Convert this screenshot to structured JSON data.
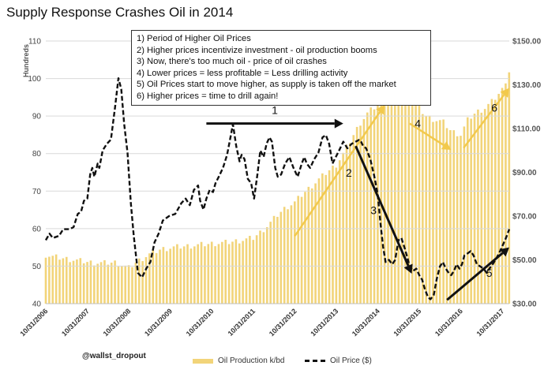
{
  "chart_data": {
    "type": "bar",
    "title": "Supply Response Crashes Oil in 2014",
    "ylabel": "Hundreds",
    "ylim": [
      40,
      110
    ],
    "y2lim": [
      30,
      150
    ],
    "y_ticks": [
      "40",
      "50",
      "60",
      "70",
      "80",
      "90",
      "100",
      "110"
    ],
    "y2_ticks": [
      "$30.00",
      "$50.00",
      "$70.00",
      "$90.00",
      "$110.00",
      "$130.00",
      "$150.00"
    ],
    "x_ticks": [
      "10/31/2006",
      "10/31/2007",
      "10/31/2008",
      "10/31/2009",
      "10/31/2010",
      "10/31/2011",
      "10/31/2012",
      "10/31/2013",
      "10/31/2014",
      "10/31/2015",
      "10/31/2016",
      "10/31/2017"
    ],
    "x_range": [
      2006.83,
      2018.0
    ],
    "legend": [
      "Oil Production k/bd",
      "Oil Price ($)"
    ],
    "series": [
      {
        "name": "Oil Production k/bd",
        "axis": "left",
        "points": [
          [
            2006.83,
            53
          ],
          [
            2007.0,
            52.5
          ],
          [
            2007.3,
            52
          ],
          [
            2007.6,
            51.5
          ],
          [
            2007.9,
            51
          ],
          [
            2008.2,
            50.8
          ],
          [
            2008.5,
            51
          ],
          [
            2008.83,
            49.5
          ],
          [
            2009.0,
            51
          ],
          [
            2009.3,
            53
          ],
          [
            2009.6,
            54.5
          ],
          [
            2009.9,
            55
          ],
          [
            2010.2,
            55.3
          ],
          [
            2010.5,
            55.6
          ],
          [
            2010.83,
            56
          ],
          [
            2011.2,
            56.3
          ],
          [
            2011.5,
            56.8
          ],
          [
            2011.83,
            57.5
          ],
          [
            2012.0,
            59
          ],
          [
            2012.2,
            61
          ],
          [
            2012.4,
            63.5
          ],
          [
            2012.6,
            65.5
          ],
          [
            2012.83,
            67
          ],
          [
            2013.0,
            69
          ],
          [
            2013.2,
            71
          ],
          [
            2013.4,
            73
          ],
          [
            2013.6,
            75
          ],
          [
            2013.83,
            77
          ],
          [
            2014.0,
            80
          ],
          [
            2014.2,
            84
          ],
          [
            2014.4,
            88
          ],
          [
            2014.6,
            91
          ],
          [
            2014.83,
            93
          ],
          [
            2015.0,
            95
          ],
          [
            2015.2,
            96
          ],
          [
            2015.4,
            95
          ],
          [
            2015.6,
            94
          ],
          [
            2015.83,
            92
          ],
          [
            2016.0,
            90
          ],
          [
            2016.2,
            89
          ],
          [
            2016.4,
            88.5
          ],
          [
            2016.6,
            86
          ],
          [
            2016.83,
            85
          ],
          [
            2017.0,
            89
          ],
          [
            2017.2,
            91
          ],
          [
            2017.4,
            92
          ],
          [
            2017.6,
            94
          ],
          [
            2017.83,
            97
          ],
          [
            2018.0,
            102
          ]
        ]
      },
      {
        "name": "Oil Price ($)",
        "axis": "right",
        "points": [
          [
            2006.83,
            59
          ],
          [
            2006.92,
            62
          ],
          [
            2007.0,
            60
          ],
          [
            2007.15,
            61
          ],
          [
            2007.25,
            64
          ],
          [
            2007.4,
            64
          ],
          [
            2007.5,
            65
          ],
          [
            2007.6,
            71
          ],
          [
            2007.68,
            72
          ],
          [
            2007.75,
            77
          ],
          [
            2007.83,
            78
          ],
          [
            2007.9,
            89
          ],
          [
            2007.95,
            92
          ],
          [
            2008.0,
            88
          ],
          [
            2008.08,
            94
          ],
          [
            2008.12,
            92
          ],
          [
            2008.2,
            100
          ],
          [
            2008.3,
            103
          ],
          [
            2008.4,
            105
          ],
          [
            2008.5,
            120
          ],
          [
            2008.58,
            133
          ],
          [
            2008.65,
            128
          ],
          [
            2008.72,
            112
          ],
          [
            2008.8,
            99
          ],
          [
            2008.88,
            76
          ],
          [
            2008.95,
            61
          ],
          [
            2009.05,
            44
          ],
          [
            2009.15,
            42
          ],
          [
            2009.25,
            46
          ],
          [
            2009.35,
            49
          ],
          [
            2009.45,
            58
          ],
          [
            2009.55,
            62
          ],
          [
            2009.65,
            68
          ],
          [
            2009.8,
            70
          ],
          [
            2009.95,
            71
          ],
          [
            2010.1,
            76
          ],
          [
            2010.2,
            78
          ],
          [
            2010.3,
            75
          ],
          [
            2010.4,
            82
          ],
          [
            2010.5,
            84
          ],
          [
            2010.55,
            77
          ],
          [
            2010.63,
            73
          ],
          [
            2010.7,
            78
          ],
          [
            2010.78,
            82
          ],
          [
            2010.86,
            81
          ],
          [
            2010.92,
            85
          ],
          [
            2011.0,
            88
          ],
          [
            2011.1,
            92
          ],
          [
            2011.2,
            98
          ],
          [
            2011.28,
            106
          ],
          [
            2011.34,
            112
          ],
          [
            2011.42,
            102
          ],
          [
            2011.5,
            95
          ],
          [
            2011.55,
            98
          ],
          [
            2011.62,
            96
          ],
          [
            2011.7,
            87
          ],
          [
            2011.78,
            85
          ],
          [
            2011.85,
            78
          ],
          [
            2011.93,
            89
          ],
          [
            2012.0,
            100
          ],
          [
            2012.08,
            97
          ],
          [
            2012.15,
            103
          ],
          [
            2012.22,
            106
          ],
          [
            2012.28,
            104
          ],
          [
            2012.36,
            92
          ],
          [
            2012.42,
            88
          ],
          [
            2012.5,
            89
          ],
          [
            2012.6,
            94
          ],
          [
            2012.7,
            97
          ],
          [
            2012.8,
            92
          ],
          [
            2012.9,
            88
          ],
          [
            2013.0,
            94
          ],
          [
            2013.06,
            97
          ],
          [
            2013.12,
            94
          ],
          [
            2013.2,
            92
          ],
          [
            2013.3,
            96
          ],
          [
            2013.4,
            99
          ],
          [
            2013.5,
            106
          ],
          [
            2013.58,
            107
          ],
          [
            2013.66,
            103
          ],
          [
            2013.74,
            94
          ],
          [
            2013.82,
            97
          ],
          [
            2013.9,
            100
          ],
          [
            2014.0,
            104
          ],
          [
            2014.1,
            101
          ],
          [
            2014.2,
            103
          ],
          [
            2014.3,
            104
          ],
          [
            2014.4,
            105
          ],
          [
            2014.48,
            102
          ],
          [
            2014.55,
            101
          ],
          [
            2014.65,
            96
          ],
          [
            2014.75,
            88
          ],
          [
            2014.83,
            80
          ],
          [
            2014.9,
            66
          ],
          [
            2014.96,
            56
          ],
          [
            2015.02,
            49
          ],
          [
            2015.1,
            50
          ],
          [
            2015.18,
            48
          ],
          [
            2015.25,
            50
          ],
          [
            2015.33,
            59
          ],
          [
            2015.4,
            60
          ],
          [
            2015.47,
            56
          ],
          [
            2015.53,
            52
          ],
          [
            2015.6,
            47
          ],
          [
            2015.68,
            45
          ],
          [
            2015.76,
            46
          ],
          [
            2015.83,
            43
          ],
          [
            2015.9,
            41
          ],
          [
            2015.96,
            37
          ],
          [
            2016.04,
            33
          ],
          [
            2016.1,
            32
          ],
          [
            2016.18,
            34
          ],
          [
            2016.25,
            41
          ],
          [
            2016.33,
            47
          ],
          [
            2016.4,
            49
          ],
          [
            2016.47,
            46
          ],
          [
            2016.54,
            44
          ],
          [
            2016.6,
            43
          ],
          [
            2016.67,
            45
          ],
          [
            2016.73,
            48
          ],
          [
            2016.8,
            46
          ],
          [
            2016.86,
            48
          ],
          [
            2016.92,
            52
          ],
          [
            2017.0,
            53
          ],
          [
            2017.07,
            54
          ],
          [
            2017.14,
            52
          ],
          [
            2017.22,
            48
          ],
          [
            2017.3,
            47
          ],
          [
            2017.38,
            46
          ],
          [
            2017.46,
            44
          ],
          [
            2017.52,
            46
          ],
          [
            2017.6,
            48
          ],
          [
            2017.7,
            51
          ],
          [
            2017.78,
            54
          ],
          [
            2017.85,
            57
          ],
          [
            2017.92,
            60
          ],
          [
            2018.0,
            64
          ]
        ]
      }
    ],
    "annotations": [
      {
        "label": "1",
        "arrow": "black",
        "from": [
          2010.7,
          88
        ],
        "to": [
          2014.0,
          88
        ]
      },
      {
        "label": "2",
        "arrow": "gold",
        "from": [
          2012.83,
          58
        ],
        "to": [
          2015.0,
          93
        ]
      },
      {
        "label": "3",
        "arrow": "black",
        "from": [
          2014.3,
          82
        ],
        "to": [
          2015.65,
          48
        ]
      },
      {
        "label": "4",
        "arrow": "gold",
        "from": [
          2015.6,
          88
        ],
        "to": [
          2016.6,
          81
        ]
      },
      {
        "label": "5",
        "arrow": "black",
        "from": [
          2016.5,
          41
        ],
        "to": [
          2018.0,
          55
        ]
      },
      {
        "label": "6",
        "arrow": "gold",
        "from": [
          2016.9,
          81.5
        ],
        "to": [
          2018.0,
          97.5
        ]
      }
    ]
  },
  "info_box": [
    "1) Period of Higher Oil Prices",
    "2) Higher prices incentivize investment - oil production booms",
    "3) Now, there's too much oil - price of oil crashes",
    "4) Lower prices = less profitable = Less drilling activity",
    "5) Oil Prices start to move higher, as supply is taken off the market",
    "6) Higher prices = time to drill again!"
  ],
  "credit": "@wallst_dropout",
  "colors": {
    "bar": "#f2d479",
    "line": "#111111",
    "gold_arrow": "#f2c94c",
    "black_arrow": "#111111"
  }
}
